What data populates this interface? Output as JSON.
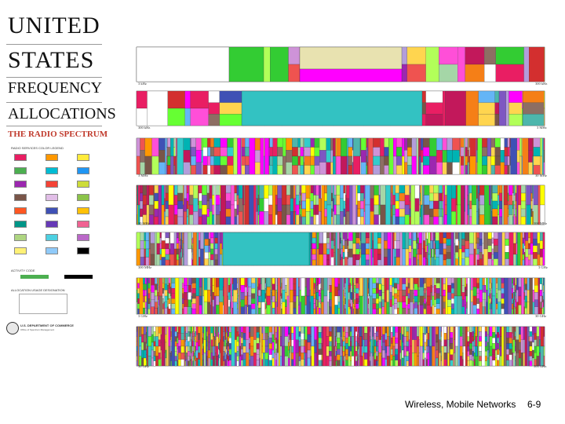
{
  "poster": {
    "title_lines": [
      "UNITED",
      "STATES",
      "FREQUENCY",
      "ALLOCATIONS"
    ],
    "subtitle": "THE RADIO SPECTRUM",
    "legend_title": "RADIO SERVICES COLOR LEGEND",
    "activity_title": "ACTIVITY CODE",
    "allocation_title": "ALLOCATION USAGE DESIGNATION",
    "department": "U.S. DEPARTMENT OF COMMERCE",
    "department_sub": "Office of Spectrum Management",
    "freq_labels": {
      "row1_left": "3 kHz",
      "row1_right": "300 kHz",
      "row2_left": "300 kHz",
      "row2_right": "3 MHz",
      "row3_left": "3 MHz",
      "row3_right": "30 MHz",
      "row4_left": "30 MHz",
      "row4_right": "300 MHz",
      "row5_left": "300 MHz",
      "row5_right": "3 GHz",
      "row6_left": "3 GHz",
      "row6_right": "30 GHz",
      "row7_left": "30 GHz",
      "row7_right": "300 GHz"
    },
    "legend_colors": [
      "#e91e63",
      "#ff9800",
      "#ffeb3b",
      "#4caf50",
      "#00bcd4",
      "#2196f3",
      "#9c27b0",
      "#f44336",
      "#cddc39",
      "#795548",
      "#e1bee7",
      "#8bc34a",
      "#ff5722",
      "#3f51b5",
      "#ffc107",
      "#009688",
      "#673ab7",
      "#f06292",
      "#aed581",
      "#4dd0e1",
      "#ba68c8",
      "#fff176",
      "#90caf9",
      "#000000"
    ],
    "band_palette": [
      "#e91e63",
      "#ff00ff",
      "#ff4fd8",
      "#c2185b",
      "#00b3b3",
      "#33cccc",
      "#66ff33",
      "#33cc33",
      "#b2ff59",
      "#ffff00",
      "#ffd54f",
      "#f57f17",
      "#ff9800",
      "#9c27b0",
      "#ce93d8",
      "#7e57c2",
      "#b39ddb",
      "#d32f2f",
      "#ef5350",
      "#3f51b5",
      "#64b5f6",
      "#a5d6a7",
      "#8d6e63",
      "#ffffff",
      "#795548",
      "#4db6ac"
    ]
  },
  "footer": {
    "title": "Wireless, Mobile Networks",
    "page_number": "6-9"
  }
}
